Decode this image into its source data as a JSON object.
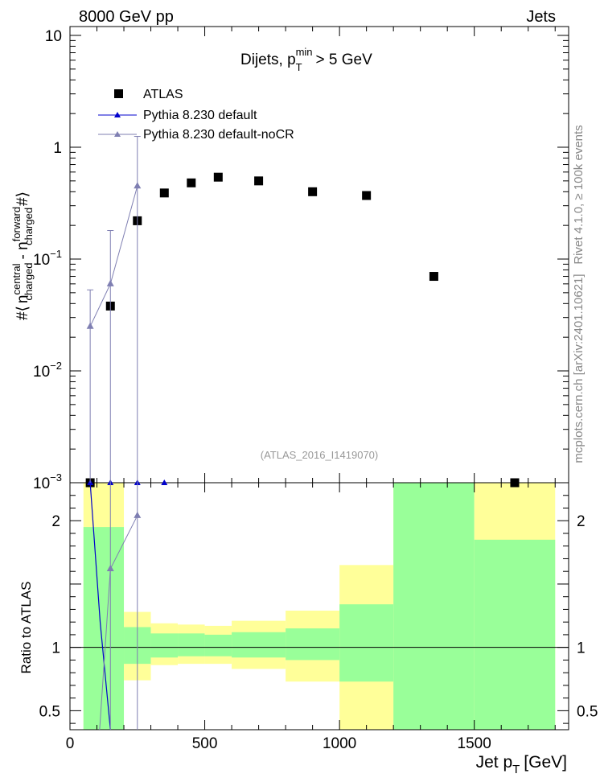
{
  "header": {
    "energy_label": "8000 GeV pp",
    "category_label": "Jets"
  },
  "side_labels": {
    "rivet": "Rivet 4.1.0, ≥ 100k events",
    "source": "mcplots.cern.ch [arXiv:2401.10621]"
  },
  "colors": {
    "atlas": "#000000",
    "default": "#0000cc",
    "nocr": "#7f7fb2",
    "band_inner": "#99ff99",
    "band_outer": "#ffff99"
  },
  "chart_data": [
    {
      "type": "scatter",
      "panel": "main",
      "title": "Dijets, p_T^min > 5 GeV",
      "title_parts": {
        "pre": "Dijets, p",
        "sub": "T",
        "sup": "min",
        "post": "> 5 GeV"
      },
      "ylabel": "#⟨ n_charged^central - n_charged^forward #⟩",
      "ylabel_parts": {
        "hash": "#⟨",
        "n1": "n",
        "sup1": "central",
        "sub1": "charged",
        "minus": "- n",
        "sup2": "forward",
        "sub2": "charged",
        "close": "#⟩"
      },
      "yscale": "log",
      "ylim": [
        0.001,
        12
      ],
      "xlim": [
        0,
        1850
      ],
      "y_tick_labels": [
        {
          "value": 10,
          "base": "10",
          "exp": ""
        },
        {
          "value": 1,
          "base": "1",
          "exp": ""
        },
        {
          "value": 0.1,
          "base": "10",
          "exp": "−1"
        },
        {
          "value": 0.01,
          "base": "10",
          "exp": "−2"
        },
        {
          "value": 0.001,
          "base": "10",
          "exp": "−3"
        }
      ],
      "annotation": "(ATLAS_2016_I1419070)",
      "legend": {
        "placement": "top-left",
        "entries": [
          "ATLAS",
          "Pythia 8.230 default",
          "Pythia 8.230 default-noCR"
        ]
      },
      "series": [
        {
          "name": "ATLAS",
          "marker": "square",
          "x": [
            75,
            150,
            250,
            350,
            450,
            550,
            700,
            900,
            1100,
            1350,
            1650
          ],
          "y": [
            0.00095,
            0.038,
            0.22,
            0.39,
            0.48,
            0.54,
            0.5,
            0.4,
            0.37,
            0.07,
            0.00095
          ]
        },
        {
          "name": "Pythia 8.230 default",
          "marker": "triangle",
          "x": [
            75,
            150,
            250,
            350
          ],
          "y": [
            0.00095,
            0.0009,
            0.0009,
            0.0009
          ]
        },
        {
          "name": "Pythia 8.230 default-noCR",
          "marker": "triangle",
          "x": [
            75,
            150,
            250
          ],
          "y": [
            0.025,
            0.06,
            0.45
          ],
          "y_err_high": [
            0.053,
            0.18,
            1.25
          ],
          "y_err_low": [
            0.0009,
            0.0009,
            0.0009
          ]
        }
      ]
    },
    {
      "type": "area",
      "panel": "ratio",
      "ylabel": "Ratio to ATLAS",
      "xlabel": "Jet p_T [GeV]",
      "xlabel_parts": {
        "pre": "Jet p",
        "sub": "T",
        "post": "[GeV]"
      },
      "ylim": [
        0.35,
        2.3
      ],
      "xlim": [
        0,
        1850
      ],
      "x_tick_labels": [
        "0",
        "500",
        "1000",
        "1500"
      ],
      "x_ticks": [
        0,
        500,
        1000,
        1500
      ],
      "y_tick_labels": [
        "2",
        "1",
        "0.5"
      ],
      "y_ticks": [
        2,
        1,
        0.5
      ],
      "bins": [
        {
          "lo": 50,
          "hi": 200,
          "inner": [
            0.35,
            1.95
          ],
          "outer": [
            0.35,
            2.3
          ]
        },
        {
          "lo": 200,
          "hi": 300,
          "inner": [
            0.87,
            1.16
          ],
          "outer": [
            0.74,
            1.28
          ]
        },
        {
          "lo": 300,
          "hi": 400,
          "inner": [
            0.92,
            1.11
          ],
          "outer": [
            0.86,
            1.19
          ]
        },
        {
          "lo": 400,
          "hi": 500,
          "inner": [
            0.93,
            1.11
          ],
          "outer": [
            0.87,
            1.18
          ]
        },
        {
          "lo": 500,
          "hi": 600,
          "inner": [
            0.93,
            1.1
          ],
          "outer": [
            0.87,
            1.17
          ]
        },
        {
          "lo": 600,
          "hi": 800,
          "inner": [
            0.92,
            1.12
          ],
          "outer": [
            0.83,
            1.21
          ]
        },
        {
          "lo": 800,
          "hi": 1000,
          "inner": [
            0.9,
            1.15
          ],
          "outer": [
            0.73,
            1.29
          ]
        },
        {
          "lo": 1000,
          "hi": 1200,
          "inner": [
            0.73,
            1.34
          ],
          "outer": [
            0.35,
            1.65
          ]
        },
        {
          "lo": 1200,
          "hi": 1500,
          "inner": [
            0.35,
            2.3
          ],
          "outer": [
            0.35,
            2.3
          ]
        },
        {
          "lo": 1500,
          "hi": 1800,
          "inner": [
            0.35,
            1.85
          ],
          "outer": [
            0.35,
            2.3
          ]
        }
      ],
      "series": [
        {
          "name": "Pythia 8.230 default",
          "x": [
            75,
            112,
            150
          ],
          "y": [
            2.3,
            1.2,
            0.35
          ]
        },
        {
          "name": "Pythia 8.230 default-noCR",
          "x": [
            110,
            150,
            250
          ],
          "y": [
            0.35,
            1.62,
            2.04
          ],
          "y_err_high": [
            2.3,
            2.3,
            2.3
          ],
          "y_err_low": [
            0.35,
            0.35,
            0.35
          ]
        }
      ]
    }
  ]
}
